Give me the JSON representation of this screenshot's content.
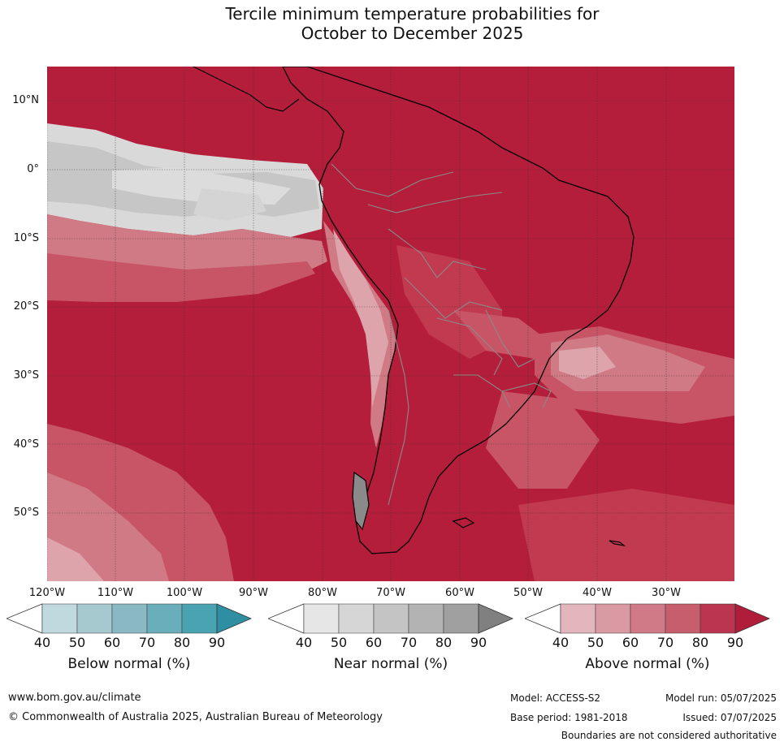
{
  "title": {
    "line1": "Tercile minimum temperature probabilities for",
    "line2": "October to December 2025"
  },
  "map": {
    "lat_labels": [
      "10°N",
      "0°",
      "10°S",
      "20°S",
      "30°S",
      "40°S",
      "50°S"
    ],
    "lon_labels": [
      "120°W",
      "110°W",
      "100°W",
      "90°W",
      "80°W",
      "70°W",
      "60°W",
      "50°W",
      "40°W",
      "30°W"
    ],
    "colors": {
      "above_90": "#b41e3a",
      "above_80": "#c23a50",
      "above_70": "#c85566",
      "above_60": "#d07a86",
      "above_50": "#dea4ac",
      "above_40": "#ecc8cc",
      "near_50": "#d9d9d9",
      "near_60": "#c6c6c6",
      "near_70": "#b4b4b4"
    }
  },
  "colorbars": {
    "ticks": [
      "40",
      "50",
      "60",
      "70",
      "80",
      "90"
    ],
    "below": {
      "label": "Below normal (%)",
      "colors": [
        "#ffffff",
        "#bfd9de",
        "#a6c8cf",
        "#8ab9c4",
        "#6aaebb",
        "#4aa3b0",
        "#2e8fa3"
      ]
    },
    "near": {
      "label": "Near normal (%)",
      "colors": [
        "#ffffff",
        "#e6e6e6",
        "#d6d6d6",
        "#c4c4c4",
        "#b3b3b3",
        "#a0a0a0",
        "#808080"
      ]
    },
    "above": {
      "label": "Above normal (%)",
      "colors": [
        "#ffffff",
        "#e2b6bc",
        "#d99aa3",
        "#cf7a86",
        "#c65e6d",
        "#bc3550",
        "#b01d3a"
      ]
    }
  },
  "footer": {
    "website": "www.bom.gov.au/climate",
    "copyright": "© Commonwealth of Australia 2025, Australian Bureau of Meteorology",
    "model": "Model: ACCESS-S2",
    "model_run": "Model run: 05/07/2025",
    "base_period": "Base period: 1981-2018",
    "issued": "Issued: 07/07/2025",
    "disclaimer": "Boundaries are not considered authoritative"
  }
}
